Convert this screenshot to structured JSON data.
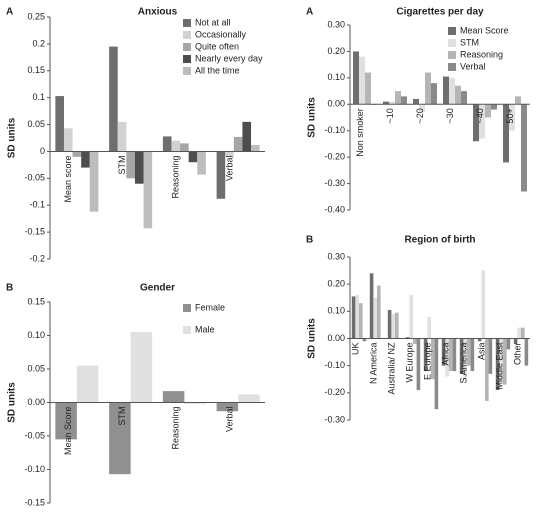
{
  "chart_data": [
    {
      "type": "bar",
      "panel_label": "A",
      "title": "Anxious",
      "y_label": "SD units",
      "categories": [
        "Mean score",
        "STM",
        "Reasoning",
        "Verbal"
      ],
      "series": [
        {
          "name": "Not at all",
          "color": "#6e6e6e",
          "values": [
            0.103,
            0.195,
            0.028,
            -0.088
          ]
        },
        {
          "name": "Occasionally",
          "color": "#d2d2d2",
          "values": [
            0.043,
            0.055,
            0.02,
            -0.01
          ]
        },
        {
          "name": "Quite often",
          "color": "#a6a6a6",
          "values": [
            -0.01,
            -0.05,
            0.015,
            0.027
          ]
        },
        {
          "name": "Nearly every day",
          "color": "#4d4d4d",
          "values": [
            -0.03,
            -0.06,
            -0.02,
            0.055
          ]
        },
        {
          "name": "All the time",
          "color": "#bdbdbd",
          "values": [
            -0.112,
            -0.143,
            -0.043,
            0.012
          ]
        }
      ],
      "ylim": [
        -0.2,
        0.25
      ],
      "yticks": [
        -0.2,
        -0.15,
        -0.1,
        -0.05,
        0,
        0.05,
        0.1,
        0.15,
        0.2,
        0.25
      ],
      "legend": "upper right"
    },
    {
      "type": "bar",
      "panel_label": "B",
      "title": "Gender",
      "y_label": "SD units",
      "categories": [
        "Mean Score",
        "STM",
        "Reasoning",
        "Verbal"
      ],
      "series": [
        {
          "name": "Female",
          "color": "#909090",
          "values": [
            -0.055,
            -0.107,
            0.017,
            -0.013
          ]
        },
        {
          "name": "Male",
          "color": "#e0e0e0",
          "values": [
            0.055,
            0.105,
            -0.002,
            0.012
          ]
        }
      ],
      "ylim": [
        -0.15,
        0.15
      ],
      "yticks": [
        {
          "value": -0.15,
          "label": "-0.15"
        },
        {
          "value": -0.1,
          "label": "-0.10"
        },
        {
          "value": -0.05,
          "label": "-0.05"
        },
        {
          "value": 0,
          "label": "0.00"
        },
        {
          "value": 0.05,
          "label": "0.05"
        },
        {
          "value": 0.1,
          "label": "0.10"
        },
        {
          "value": 0.15,
          "label": "0.15"
        }
      ],
      "legend": "upper right"
    },
    {
      "type": "bar",
      "panel_label": "A",
      "title": "Cigarettes per day",
      "y_label": "SD units",
      "categories": [
        "Non smoker",
        "~10",
        "~20",
        "~30",
        "~40",
        "50+"
      ],
      "series": [
        {
          "name": "Mean Score",
          "color": "#6e6e6e",
          "values": [
            0.2,
            0.01,
            0.02,
            0.105,
            -0.14,
            -0.22
          ]
        },
        {
          "name": "STM",
          "color": "#e0e0e0",
          "values": [
            0.18,
            0.01,
            -0.03,
            0.1,
            -0.13,
            -0.1
          ]
        },
        {
          "name": "Reasoning",
          "color": "#b5b5b5",
          "values": [
            0.12,
            0.05,
            0.12,
            0.07,
            -0.05,
            0.03
          ]
        },
        {
          "name": "Verbal",
          "color": "#8a8a8a",
          "values": [
            0.0,
            0.03,
            0.08,
            0.05,
            -0.02,
            -0.33
          ]
        }
      ],
      "ylim": [
        -0.4,
        0.3
      ],
      "yticks": [
        {
          "value": -0.4,
          "label": "-0.40"
        },
        {
          "value": -0.3,
          "label": "-0.30"
        },
        {
          "value": -0.2,
          "label": "-0.20"
        },
        {
          "value": -0.1,
          "label": "-0.10"
        },
        {
          "value": 0,
          "label": "0.00"
        },
        {
          "value": 0.1,
          "label": "0.10"
        },
        {
          "value": 0.2,
          "label": "0.20"
        },
        {
          "value": 0.3,
          "label": "0.30"
        }
      ],
      "legend": "upper right"
    },
    {
      "type": "bar",
      "panel_label": "B",
      "title": "Region of birth",
      "y_label": "SD units",
      "categories": [
        "UK",
        "N America",
        "Australia/ NZ",
        "W Europe",
        "E Europe",
        "Africa",
        "S America",
        "Asia",
        "Middle East",
        "Other"
      ],
      "series": [
        {
          "color": "#6e6e6e",
          "values": [
            0.155,
            0.24,
            0.105,
            0.005,
            -0.12,
            -0.1,
            -0.13,
            -0.01,
            -0.19,
            -0.02
          ]
        },
        {
          "color": "#e0e0e0",
          "values": [
            0.16,
            0.15,
            0.09,
            0.16,
            0.08,
            -0.14,
            -0.15,
            0.25,
            -0.16,
            0.04
          ]
        },
        {
          "color": "#b5b5b5",
          "values": [
            0.13,
            0.195,
            0.095,
            -0.02,
            -0.15,
            -0.12,
            -0.1,
            -0.23,
            -0.17,
            0.04
          ]
        },
        {
          "color": "#8a8a8a",
          "values": [
            -0.01,
            0.0,
            0.0,
            -0.19,
            -0.26,
            -0.12,
            -0.12,
            -0.13,
            -0.04,
            -0.1
          ]
        }
      ],
      "ylim": [
        -0.3,
        0.3
      ],
      "yticks": [
        {
          "value": -0.3,
          "label": "-0.30"
        },
        {
          "value": -0.2,
          "label": "-0.20"
        },
        {
          "value": -0.1,
          "label": "-0.10"
        },
        {
          "value": 0,
          "label": "0.00"
        },
        {
          "value": 0.1,
          "label": "0.10"
        },
        {
          "value": 0.2,
          "label": "0.20"
        },
        {
          "value": 0.3,
          "label": "0.30"
        }
      ]
    }
  ]
}
